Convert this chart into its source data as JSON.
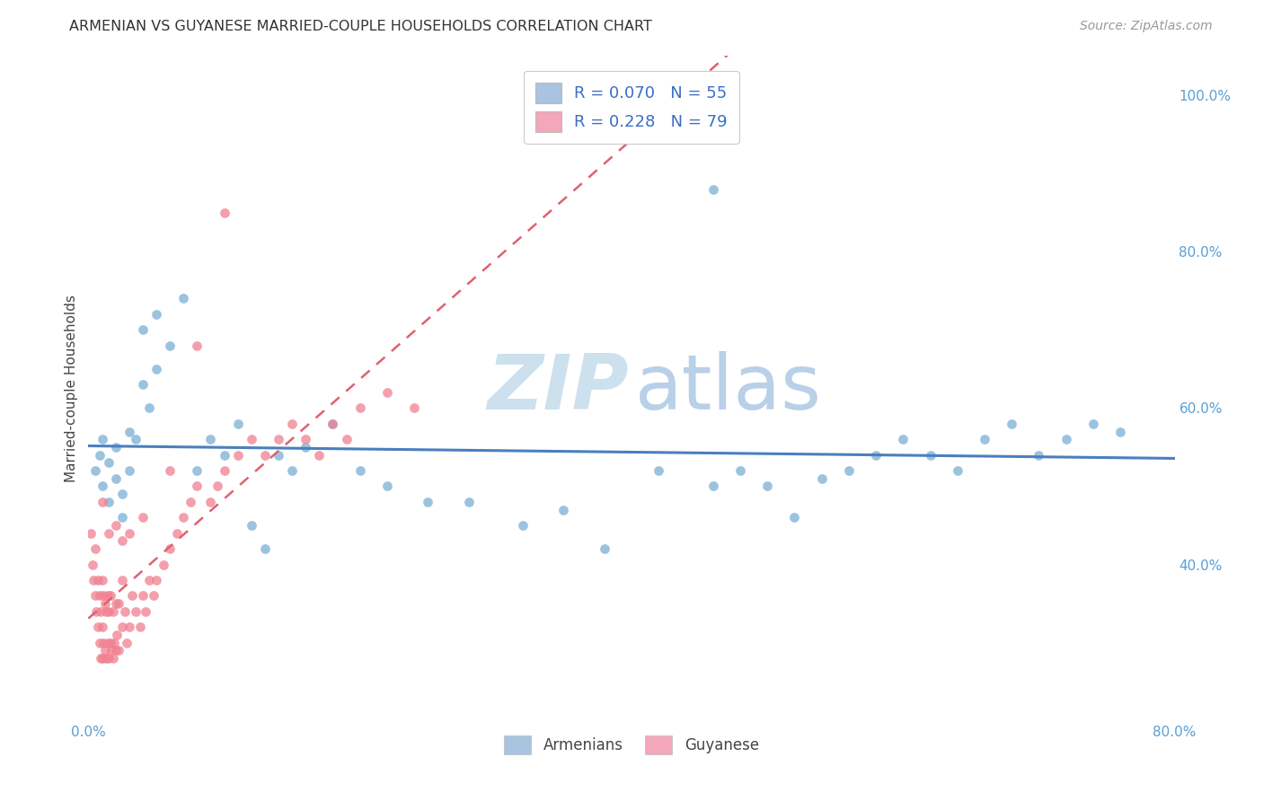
{
  "title": "ARMENIAN VS GUYANESE MARRIED-COUPLE HOUSEHOLDS CORRELATION CHART",
  "source": "Source: ZipAtlas.com",
  "ylabel": "Married-couple Households",
  "xlim": [
    0.0,
    0.8
  ],
  "ylim": [
    0.2,
    1.05
  ],
  "armenians_color": "#7bafd4",
  "guyanese_color": "#f08090",
  "armenians_legend_color": "#a8c4e0",
  "guyanese_legend_color": "#f4a7b9",
  "trendline_armenians_color": "#4a7fbe",
  "trendline_guyanese_color": "#e06070",
  "watermark_zip_color": "#cce0ee",
  "watermark_atlas_color": "#b8d0e8",
  "watermark_fontsize": 62,
  "armenians_x": [
    0.005,
    0.008,
    0.01,
    0.01,
    0.015,
    0.02,
    0.02,
    0.025,
    0.03,
    0.03,
    0.04,
    0.04,
    0.05,
    0.05,
    0.06,
    0.07,
    0.08,
    0.09,
    0.1,
    0.11,
    0.12,
    0.13,
    0.14,
    0.15,
    0.16,
    0.18,
    0.2,
    0.22,
    0.25,
    0.28,
    0.32,
    0.35,
    0.38,
    0.42,
    0.46,
    0.48,
    0.5,
    0.52,
    0.54,
    0.56,
    0.58,
    0.6,
    0.62,
    0.64,
    0.66,
    0.68,
    0.7,
    0.72,
    0.74,
    0.76,
    0.015,
    0.025,
    0.035,
    0.045,
    0.46
  ],
  "armenians_y": [
    0.52,
    0.54,
    0.5,
    0.56,
    0.53,
    0.51,
    0.55,
    0.49,
    0.52,
    0.57,
    0.63,
    0.7,
    0.65,
    0.72,
    0.68,
    0.74,
    0.52,
    0.56,
    0.54,
    0.58,
    0.45,
    0.42,
    0.54,
    0.52,
    0.55,
    0.58,
    0.52,
    0.5,
    0.48,
    0.48,
    0.45,
    0.47,
    0.42,
    0.52,
    0.5,
    0.52,
    0.5,
    0.46,
    0.51,
    0.52,
    0.54,
    0.56,
    0.54,
    0.52,
    0.56,
    0.58,
    0.54,
    0.56,
    0.58,
    0.57,
    0.48,
    0.46,
    0.56,
    0.6,
    0.88
  ],
  "guyanese_x": [
    0.002,
    0.003,
    0.004,
    0.005,
    0.005,
    0.006,
    0.007,
    0.007,
    0.008,
    0.008,
    0.009,
    0.009,
    0.01,
    0.01,
    0.01,
    0.011,
    0.011,
    0.012,
    0.012,
    0.013,
    0.013,
    0.014,
    0.014,
    0.015,
    0.015,
    0.016,
    0.016,
    0.017,
    0.018,
    0.018,
    0.019,
    0.02,
    0.02,
    0.021,
    0.022,
    0.022,
    0.025,
    0.025,
    0.027,
    0.028,
    0.03,
    0.032,
    0.035,
    0.038,
    0.04,
    0.042,
    0.045,
    0.048,
    0.05,
    0.055,
    0.06,
    0.065,
    0.07,
    0.075,
    0.08,
    0.09,
    0.095,
    0.1,
    0.11,
    0.12,
    0.13,
    0.14,
    0.15,
    0.16,
    0.17,
    0.18,
    0.19,
    0.2,
    0.22,
    0.24,
    0.1,
    0.08,
    0.06,
    0.04,
    0.03,
    0.025,
    0.02,
    0.015,
    0.01
  ],
  "guyanese_y": [
    0.44,
    0.4,
    0.38,
    0.36,
    0.42,
    0.34,
    0.32,
    0.38,
    0.3,
    0.36,
    0.28,
    0.34,
    0.28,
    0.32,
    0.38,
    0.3,
    0.36,
    0.29,
    0.35,
    0.28,
    0.34,
    0.3,
    0.36,
    0.28,
    0.34,
    0.3,
    0.36,
    0.29,
    0.28,
    0.34,
    0.3,
    0.29,
    0.35,
    0.31,
    0.29,
    0.35,
    0.32,
    0.38,
    0.34,
    0.3,
    0.32,
    0.36,
    0.34,
    0.32,
    0.36,
    0.34,
    0.38,
    0.36,
    0.38,
    0.4,
    0.42,
    0.44,
    0.46,
    0.48,
    0.5,
    0.48,
    0.5,
    0.52,
    0.54,
    0.56,
    0.54,
    0.56,
    0.58,
    0.56,
    0.54,
    0.58,
    0.56,
    0.6,
    0.62,
    0.6,
    0.85,
    0.68,
    0.52,
    0.46,
    0.44,
    0.43,
    0.45,
    0.44,
    0.48
  ]
}
